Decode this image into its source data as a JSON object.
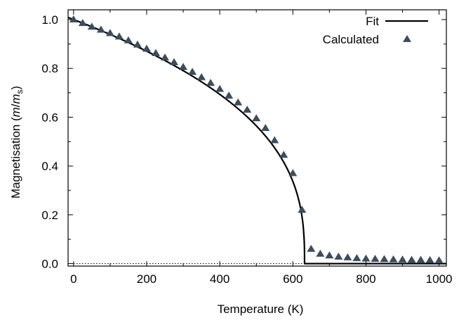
{
  "chart_data": {
    "type": "scatter",
    "xlabel": "Temperature (K)",
    "ylabel": {
      "prefix": "Magnetisation (",
      "m": "m",
      "slash": "/",
      "ms": "m",
      "sub": "s",
      "suffix": ")"
    },
    "xlim": [
      -15,
      1020
    ],
    "ylim": [
      -0.01,
      1.04
    ],
    "xticks": [
      0,
      200,
      400,
      600,
      800,
      1000
    ],
    "xtick_labels": [
      "0",
      "200",
      "400",
      "600",
      "800",
      "1000"
    ],
    "yticks": [
      0.0,
      0.2,
      0.4,
      0.6,
      0.8,
      1.0
    ],
    "ytick_labels": [
      "0.0",
      "0.2",
      "0.4",
      "0.6",
      "0.8",
      "1.0"
    ],
    "reference_line": {
      "y": 0.0,
      "style": "dotted"
    },
    "legend": {
      "position": "top-right"
    },
    "series": [
      {
        "name": "Fit",
        "kind": "line",
        "color": "#000000",
        "Tc": 632,
        "beta": 0.365,
        "x_end": 1020
      },
      {
        "name": "Calculated",
        "kind": "markers",
        "marker": "triangle",
        "color": "#3c4d5c",
        "x": [
          0,
          25,
          50,
          75,
          100,
          125,
          150,
          175,
          200,
          225,
          250,
          275,
          300,
          325,
          350,
          375,
          400,
          425,
          450,
          475,
          500,
          525,
          550,
          575,
          600,
          625,
          650,
          675,
          700,
          725,
          750,
          775,
          800,
          825,
          850,
          875,
          900,
          925,
          950,
          975,
          1000
        ],
        "y": [
          1.0,
          0.985,
          0.97,
          0.958,
          0.944,
          0.93,
          0.914,
          0.897,
          0.88,
          0.862,
          0.844,
          0.825,
          0.805,
          0.785,
          0.763,
          0.74,
          0.715,
          0.688,
          0.66,
          0.63,
          0.595,
          0.555,
          0.505,
          0.445,
          0.37,
          0.22,
          0.06,
          0.04,
          0.033,
          0.028,
          0.025,
          0.022,
          0.02,
          0.019,
          0.018,
          0.017,
          0.016,
          0.015,
          0.015,
          0.014,
          0.013
        ]
      }
    ]
  }
}
